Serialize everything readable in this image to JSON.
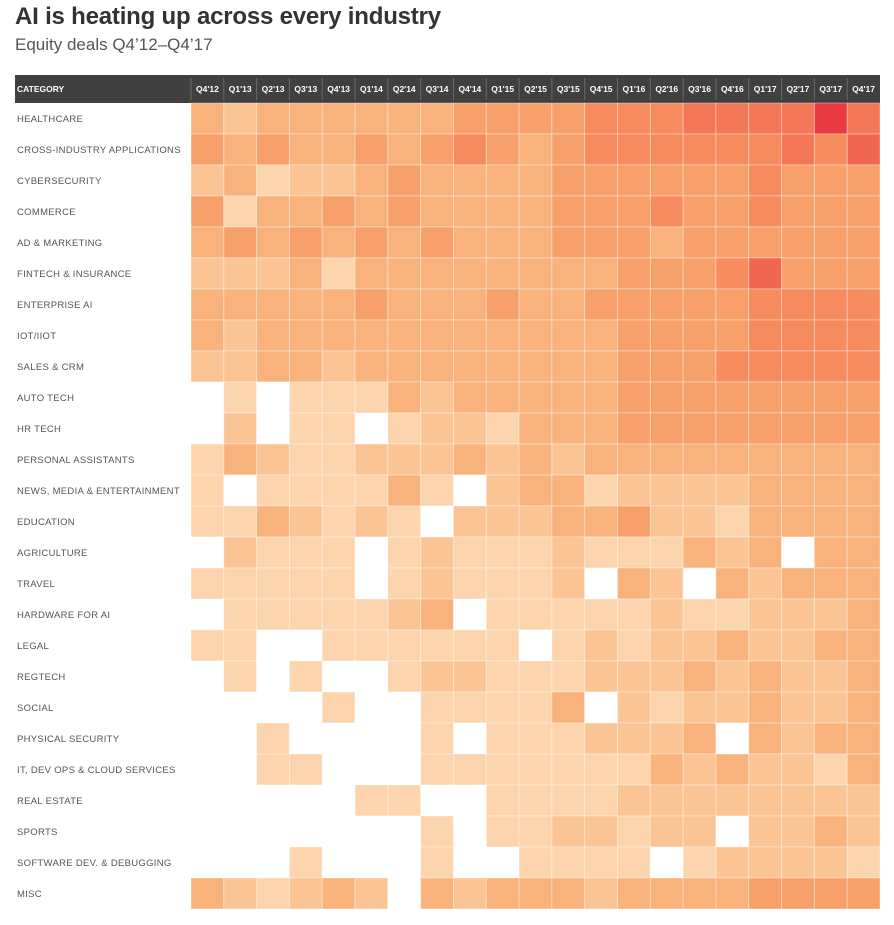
{
  "title": "AI is heating up across every industry",
  "subtitle": "Equity deals Q4’12–Q4’17",
  "chart_data": {
    "type": "heatmap",
    "title": "AI is heating up across every industry",
    "subtitle": "Equity deals Q4’12–Q4’17",
    "header_label": "CATEGORY",
    "columns": [
      "Q4'12",
      "Q1'13",
      "Q2'13",
      "Q3'13",
      "Q4'13",
      "Q1'14",
      "Q2'14",
      "Q3'14",
      "Q4'14",
      "Q1'15",
      "Q2'15",
      "Q3'15",
      "Q4'15",
      "Q1'16",
      "Q2'16",
      "Q3'16",
      "Q4'16",
      "Q1'17",
      "Q2'17",
      "Q3'17",
      "Q4'17"
    ],
    "rows": [
      "HEALTHCARE",
      "CROSS-INDUSTRY APPLICATIONS",
      "CYBERSECURITY",
      "COMMERCE",
      "AD & MARKETING",
      "FINTECH & INSURANCE",
      "ENTERPRISE AI",
      "IOT/IIOT",
      "SALES & CRM",
      "AUTO TECH",
      "HR TECH",
      "PERSONAL ASSISTANTS",
      "NEWS, MEDIA & ENTERTAINMENT",
      "EDUCATION",
      "AGRICULTURE",
      "TRAVEL",
      "HARDWARE FOR AI",
      "LEGAL",
      "REGTECH",
      "SOCIAL",
      "PHYSICAL SECURITY",
      "IT, DEV OPS & CLOUD SERVICES",
      "REAL ESTATE",
      "SPORTS",
      "SOFTWARE DEV. & DEBUGGING",
      "MISC"
    ],
    "values": [
      [
        4,
        3,
        4,
        4,
        4,
        4,
        4,
        4,
        5,
        5,
        5,
        5,
        6,
        6,
        6,
        7,
        7,
        7,
        7,
        10,
        7
      ],
      [
        5,
        4,
        5,
        4,
        4,
        5,
        4,
        5,
        6,
        5,
        4,
        5,
        6,
        6,
        6,
        6,
        6,
        6,
        7,
        6,
        8
      ],
      [
        3,
        4,
        2,
        3,
        3,
        4,
        5,
        4,
        4,
        4,
        4,
        5,
        5,
        5,
        5,
        5,
        5,
        6,
        5,
        5,
        5
      ],
      [
        5,
        2,
        4,
        4,
        5,
        4,
        5,
        4,
        4,
        4,
        4,
        5,
        5,
        5,
        6,
        5,
        5,
        6,
        5,
        5,
        5
      ],
      [
        4,
        5,
        4,
        5,
        4,
        5,
        4,
        5,
        4,
        4,
        4,
        5,
        5,
        5,
        4,
        5,
        5,
        5,
        5,
        5,
        5
      ],
      [
        3,
        3,
        3,
        4,
        2,
        4,
        4,
        4,
        4,
        4,
        4,
        4,
        4,
        5,
        5,
        5,
        6,
        8,
        5,
        5,
        5
      ],
      [
        4,
        4,
        4,
        4,
        4,
        5,
        4,
        4,
        4,
        5,
        4,
        4,
        5,
        5,
        5,
        5,
        5,
        6,
        6,
        6,
        6
      ],
      [
        4,
        3,
        4,
        4,
        4,
        4,
        4,
        4,
        4,
        4,
        4,
        4,
        4,
        5,
        5,
        5,
        5,
        6,
        6,
        6,
        6
      ],
      [
        3,
        3,
        4,
        4,
        3,
        4,
        4,
        4,
        4,
        4,
        4,
        4,
        4,
        5,
        5,
        5,
        6,
        6,
        6,
        6,
        6
      ],
      [
        0,
        2,
        0,
        2,
        2,
        2,
        4,
        3,
        4,
        4,
        4,
        4,
        4,
        5,
        5,
        5,
        5,
        5,
        5,
        5,
        5
      ],
      [
        0,
        3,
        0,
        2,
        2,
        0,
        2,
        3,
        3,
        2,
        4,
        4,
        4,
        5,
        5,
        5,
        5,
        5,
        5,
        5,
        5
      ],
      [
        2,
        4,
        3,
        2,
        2,
        3,
        3,
        3,
        4,
        3,
        4,
        3,
        4,
        4,
        4,
        4,
        4,
        4,
        4,
        4,
        4
      ],
      [
        2,
        0,
        2,
        2,
        2,
        2,
        4,
        2,
        0,
        3,
        4,
        4,
        2,
        3,
        3,
        3,
        3,
        4,
        4,
        4,
        4
      ],
      [
        2,
        2,
        4,
        3,
        2,
        3,
        2,
        0,
        3,
        3,
        3,
        4,
        4,
        5,
        3,
        3,
        2,
        4,
        4,
        4,
        4
      ],
      [
        0,
        3,
        2,
        2,
        2,
        0,
        2,
        3,
        2,
        2,
        2,
        3,
        2,
        2,
        2,
        4,
        3,
        4,
        0,
        4,
        4
      ],
      [
        2,
        2,
        2,
        2,
        2,
        0,
        2,
        3,
        2,
        2,
        2,
        3,
        0,
        4,
        3,
        0,
        4,
        3,
        4,
        4,
        4
      ],
      [
        0,
        2,
        2,
        2,
        2,
        2,
        3,
        4,
        0,
        2,
        2,
        2,
        2,
        2,
        3,
        2,
        2,
        3,
        3,
        3,
        4
      ],
      [
        2,
        2,
        0,
        0,
        2,
        2,
        2,
        2,
        2,
        2,
        0,
        2,
        3,
        2,
        3,
        3,
        4,
        3,
        3,
        4,
        4
      ],
      [
        0,
        2,
        0,
        2,
        0,
        0,
        2,
        3,
        3,
        2,
        2,
        2,
        3,
        3,
        3,
        4,
        3,
        4,
        3,
        3,
        4
      ],
      [
        0,
        0,
        0,
        0,
        2,
        0,
        0,
        2,
        2,
        2,
        2,
        4,
        0,
        3,
        2,
        3,
        3,
        4,
        3,
        3,
        4
      ],
      [
        0,
        0,
        2,
        0,
        0,
        0,
        0,
        2,
        0,
        2,
        2,
        2,
        3,
        3,
        3,
        4,
        0,
        4,
        3,
        4,
        4
      ],
      [
        0,
        0,
        2,
        2,
        0,
        0,
        0,
        2,
        2,
        2,
        2,
        2,
        2,
        2,
        4,
        3,
        4,
        3,
        3,
        2,
        4
      ],
      [
        0,
        0,
        0,
        0,
        0,
        2,
        2,
        0,
        0,
        2,
        2,
        2,
        2,
        3,
        3,
        3,
        3,
        3,
        3,
        3,
        3
      ],
      [
        0,
        0,
        0,
        0,
        0,
        0,
        0,
        2,
        0,
        2,
        2,
        3,
        3,
        2,
        3,
        3,
        0,
        3,
        3,
        4,
        3
      ],
      [
        0,
        0,
        0,
        2,
        0,
        0,
        0,
        2,
        0,
        0,
        2,
        2,
        2,
        2,
        0,
        2,
        3,
        3,
        3,
        3,
        2
      ],
      [
        4,
        3,
        2,
        3,
        4,
        3,
        0,
        4,
        3,
        4,
        4,
        4,
        3,
        4,
        4,
        4,
        4,
        5,
        5,
        5,
        5
      ]
    ],
    "scale_note": "relative deal intensity 0 (none) to 10 (highest), estimated from cell color",
    "colors": {
      "header_bg": "#404040",
      "header_text": "#ffffff",
      "row_label_text": "#555555",
      "scale": [
        "#ffffff",
        "#fde3c6",
        "#fcd4ad",
        "#fbc495",
        "#f9b27c",
        "#f8a06a",
        "#f68b5d",
        "#f37656",
        "#f06650",
        "#ec5248",
        "#e83a40"
      ]
    }
  }
}
